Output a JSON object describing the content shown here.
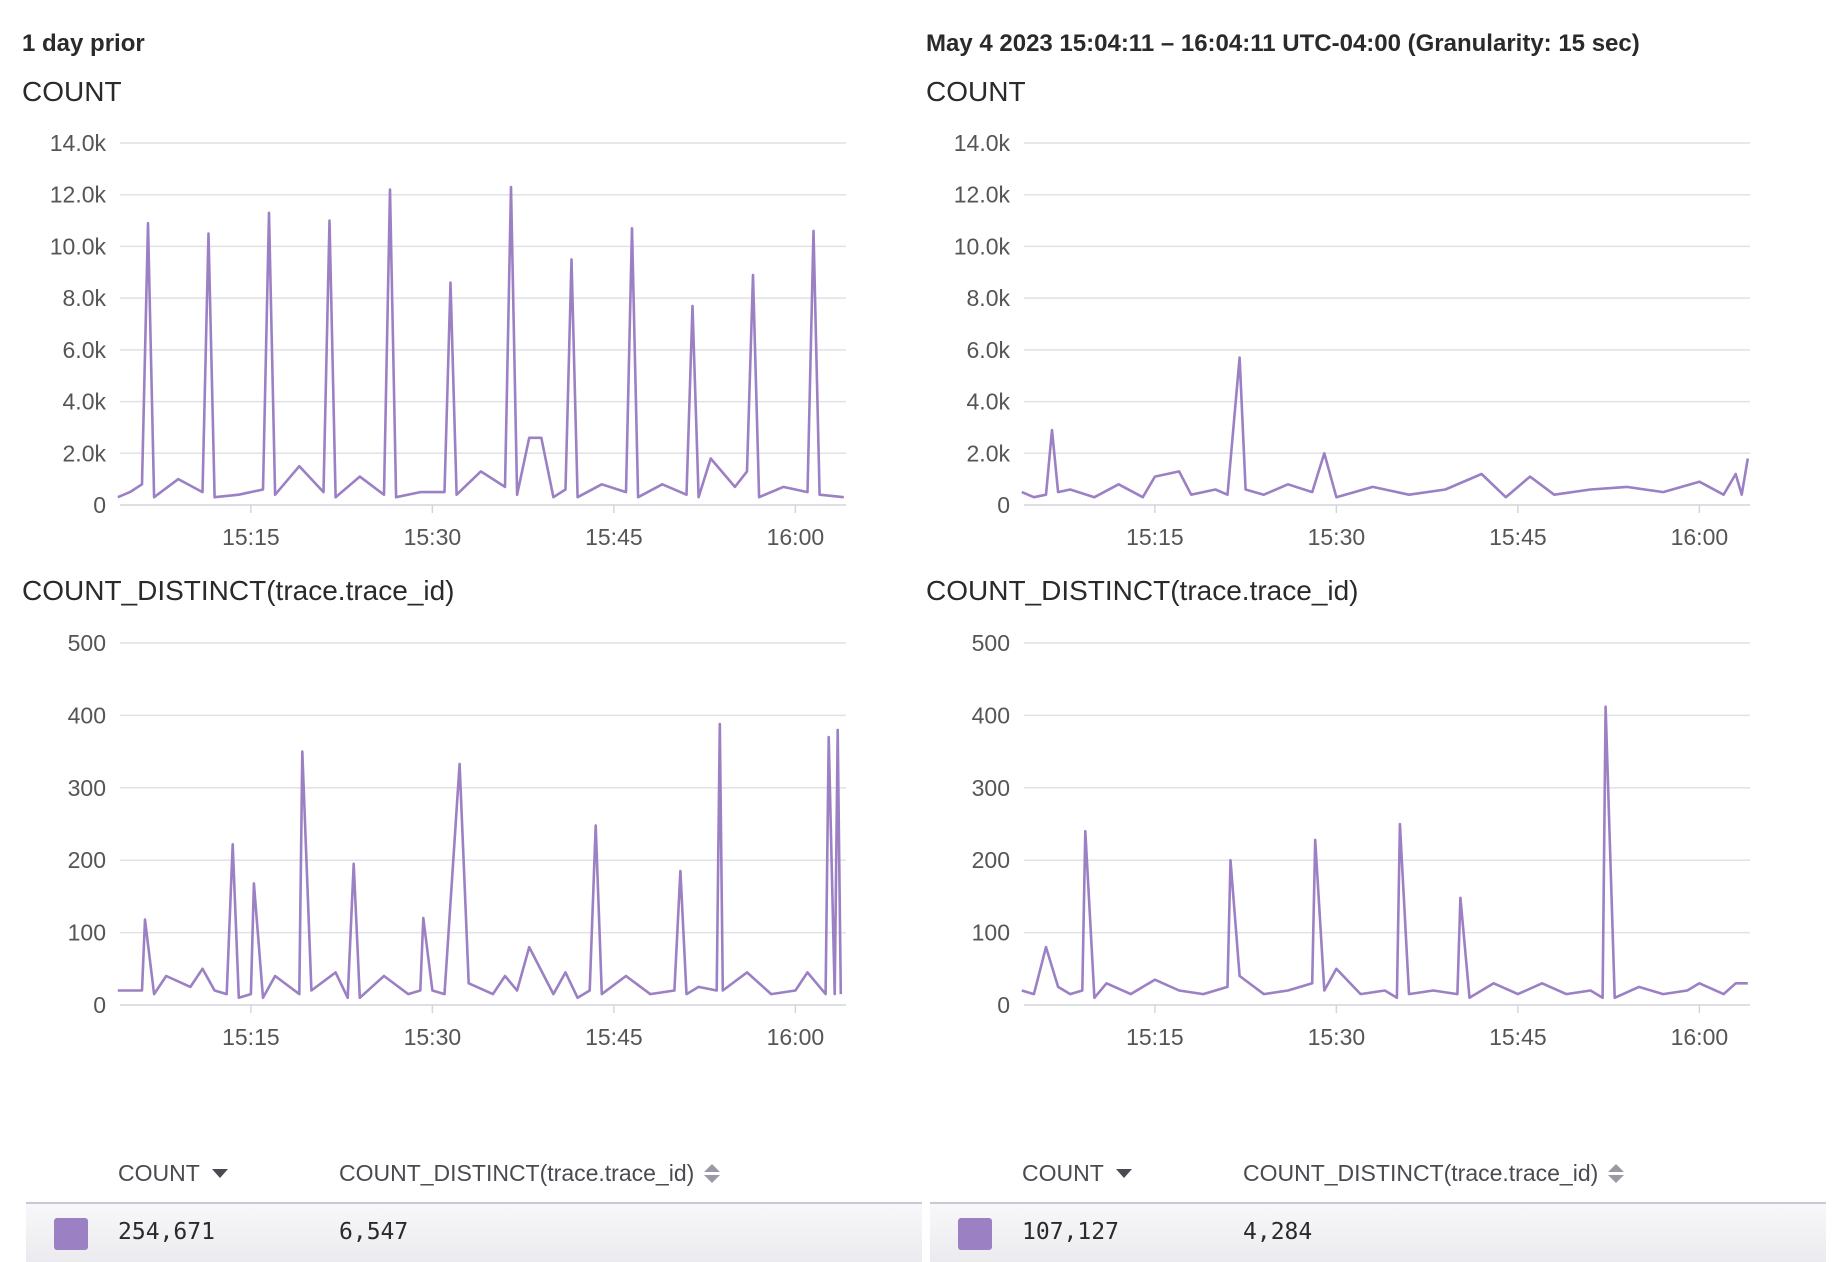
{
  "colors": {
    "series": "#9b80c4",
    "grid": "#e1e1e6",
    "text": "#2a2a2a"
  },
  "panels": [
    {
      "header": "1 day prior",
      "count_title": "COUNT",
      "distinct_title": "COUNT_DISTINCT(trace.trace_id)",
      "table": {
        "col_count": "COUNT",
        "col_distinct": "COUNT_DISTINCT(trace.trace_id)",
        "count_value": "254,671",
        "distinct_value": "6,547"
      }
    },
    {
      "header": "May 4 2023 15:04:11 – 16:04:11 UTC-04:00 (Granularity: 15 sec)",
      "count_title": "COUNT",
      "distinct_title": "COUNT_DISTINCT(trace.trace_id)",
      "table": {
        "col_count": "COUNT",
        "col_distinct": "COUNT_DISTINCT(trace.trace_id)",
        "count_value": "107,127",
        "distinct_value": "4,284"
      }
    }
  ],
  "chart_data": [
    {
      "type": "line",
      "panel": "1 day prior",
      "title": "COUNT",
      "x_range": [
        "15:04:11",
        "16:04:11"
      ],
      "x_ticks": [
        "15:15",
        "15:30",
        "15:45",
        "16:00"
      ],
      "y_ticks": [
        "0",
        "2.0k",
        "4.0k",
        "6.0k",
        "8.0k",
        "10.0k",
        "12.0k",
        "14.0k"
      ],
      "ylim": [
        0,
        14000
      ],
      "grid": true,
      "points": [
        [
          "15:04",
          300
        ],
        [
          "15:05",
          500
        ],
        [
          "15:06",
          800
        ],
        [
          "15:06:30",
          10900
        ],
        [
          "15:07",
          300
        ],
        [
          "15:09",
          1000
        ],
        [
          "15:11",
          500
        ],
        [
          "15:11:30",
          10500
        ],
        [
          "15:12",
          300
        ],
        [
          "15:14",
          400
        ],
        [
          "15:16",
          600
        ],
        [
          "15:16:30",
          11300
        ],
        [
          "15:17",
          400
        ],
        [
          "15:19",
          1500
        ],
        [
          "15:21",
          500
        ],
        [
          "15:21:30",
          11000
        ],
        [
          "15:22",
          300
        ],
        [
          "15:24",
          1100
        ],
        [
          "15:26",
          400
        ],
        [
          "15:26:30",
          12200
        ],
        [
          "15:27",
          300
        ],
        [
          "15:29",
          500
        ],
        [
          "15:31",
          500
        ],
        [
          "15:31:30",
          8600
        ],
        [
          "15:32",
          400
        ],
        [
          "15:34",
          1300
        ],
        [
          "15:36",
          700
        ],
        [
          "15:36:30",
          12300
        ],
        [
          "15:37",
          400
        ],
        [
          "15:38",
          2600
        ],
        [
          "15:39",
          2600
        ],
        [
          "15:40",
          300
        ],
        [
          "15:41",
          600
        ],
        [
          "15:41:30",
          9500
        ],
        [
          "15:42",
          300
        ],
        [
          "15:44",
          800
        ],
        [
          "15:46",
          500
        ],
        [
          "15:46:30",
          10700
        ],
        [
          "15:47",
          300
        ],
        [
          "15:49",
          800
        ],
        [
          "15:51",
          400
        ],
        [
          "15:51:30",
          7700
        ],
        [
          "15:52",
          300
        ],
        [
          "15:53",
          1800
        ],
        [
          "15:55",
          700
        ],
        [
          "15:56",
          1300
        ],
        [
          "15:56:30",
          8900
        ],
        [
          "15:57",
          300
        ],
        [
          "15:59",
          700
        ],
        [
          "16:01",
          500
        ],
        [
          "16:01:30",
          10600
        ],
        [
          "16:02",
          400
        ],
        [
          "16:04",
          300
        ]
      ]
    },
    {
      "type": "line",
      "panel": "1 day prior",
      "title": "COUNT_DISTINCT(trace.trace_id)",
      "x_range": [
        "15:04:11",
        "16:04:11"
      ],
      "x_ticks": [
        "15:15",
        "15:30",
        "15:45",
        "16:00"
      ],
      "y_ticks": [
        "0",
        "100",
        "200",
        "300",
        "400",
        "500"
      ],
      "ylim": [
        0,
        500
      ],
      "grid": true,
      "points": [
        [
          "15:04",
          20
        ],
        [
          "15:06",
          20
        ],
        [
          "15:06:15",
          118
        ],
        [
          "15:07",
          15
        ],
        [
          "15:08",
          40
        ],
        [
          "15:10",
          25
        ],
        [
          "15:11",
          50
        ],
        [
          "15:12",
          20
        ],
        [
          "15:13",
          15
        ],
        [
          "15:13:30",
          222
        ],
        [
          "15:14",
          10
        ],
        [
          "15:15",
          15
        ],
        [
          "15:15:15",
          168
        ],
        [
          "15:16",
          10
        ],
        [
          "15:17",
          40
        ],
        [
          "15:19",
          15
        ],
        [
          "15:19:15",
          350
        ],
        [
          "15:20",
          20
        ],
        [
          "15:22",
          45
        ],
        [
          "15:23",
          10
        ],
        [
          "15:23:30",
          195
        ],
        [
          "15:24",
          10
        ],
        [
          "15:26",
          40
        ],
        [
          "15:28",
          15
        ],
        [
          "15:29",
          20
        ],
        [
          "15:29:15",
          120
        ],
        [
          "15:30",
          20
        ],
        [
          "15:31",
          15
        ],
        [
          "15:32:15",
          333
        ],
        [
          "15:33",
          30
        ],
        [
          "15:35",
          15
        ],
        [
          "15:36",
          40
        ],
        [
          "15:37",
          20
        ],
        [
          "15:38",
          80
        ],
        [
          "15:40",
          15
        ],
        [
          "15:41",
          45
        ],
        [
          "15:42",
          10
        ],
        [
          "15:43",
          20
        ],
        [
          "15:43:30",
          248
        ],
        [
          "15:44",
          15
        ],
        [
          "15:46",
          40
        ],
        [
          "15:48",
          15
        ],
        [
          "15:50",
          20
        ],
        [
          "15:50:30",
          185
        ],
        [
          "15:51",
          15
        ],
        [
          "15:52",
          25
        ],
        [
          "15:53:30",
          20
        ],
        [
          "15:53:45",
          388
        ],
        [
          "15:54",
          20
        ],
        [
          "15:56",
          45
        ],
        [
          "15:58",
          15
        ],
        [
          "16:00",
          20
        ],
        [
          "16:01",
          45
        ],
        [
          "16:02:30",
          15
        ],
        [
          "16:02:45",
          370
        ],
        [
          "16:03:15",
          15
        ],
        [
          "16:03:30",
          380
        ],
        [
          "16:03:45",
          15
        ]
      ]
    },
    {
      "type": "line",
      "panel": "May 4 2023 15:04:11 – 16:04:11 UTC-04:00 (Granularity: 15 sec)",
      "title": "COUNT",
      "x_range": [
        "15:04:11",
        "16:04:11"
      ],
      "x_ticks": [
        "15:15",
        "15:30",
        "15:45",
        "16:00"
      ],
      "y_ticks": [
        "0",
        "2.0k",
        "4.0k",
        "6.0k",
        "8.0k",
        "10.0k",
        "12.0k",
        "14.0k"
      ],
      "ylim": [
        0,
        14000
      ],
      "grid": true,
      "points": [
        [
          "15:04",
          500
        ],
        [
          "15:05",
          300
        ],
        [
          "15:06",
          400
        ],
        [
          "15:06:30",
          2900
        ],
        [
          "15:07",
          500
        ],
        [
          "15:08",
          600
        ],
        [
          "15:10",
          300
        ],
        [
          "15:12",
          800
        ],
        [
          "15:14",
          300
        ],
        [
          "15:15",
          1100
        ],
        [
          "15:17",
          1300
        ],
        [
          "15:18",
          400
        ],
        [
          "15:20",
          600
        ],
        [
          "15:21",
          400
        ],
        [
          "15:22",
          5700
        ],
        [
          "15:22:30",
          600
        ],
        [
          "15:24",
          400
        ],
        [
          "15:26",
          800
        ],
        [
          "15:28",
          500
        ],
        [
          "15:29",
          2000
        ],
        [
          "15:30",
          300
        ],
        [
          "15:33",
          700
        ],
        [
          "15:36",
          400
        ],
        [
          "15:39",
          600
        ],
        [
          "15:42",
          1200
        ],
        [
          "15:44",
          300
        ],
        [
          "15:46",
          1100
        ],
        [
          "15:48",
          400
        ],
        [
          "15:51",
          600
        ],
        [
          "15:54",
          700
        ],
        [
          "15:57",
          500
        ],
        [
          "16:00",
          900
        ],
        [
          "16:02",
          400
        ],
        [
          "16:03",
          1200
        ],
        [
          "16:03:30",
          400
        ],
        [
          "16:04",
          1800
        ]
      ]
    },
    {
      "type": "line",
      "panel": "May 4 2023 15:04:11 – 16:04:11 UTC-04:00 (Granularity: 15 sec)",
      "title": "COUNT_DISTINCT(trace.trace_id)",
      "x_range": [
        "15:04:11",
        "16:04:11"
      ],
      "x_ticks": [
        "15:15",
        "15:30",
        "15:45",
        "16:00"
      ],
      "y_ticks": [
        "0",
        "100",
        "200",
        "300",
        "400",
        "500"
      ],
      "ylim": [
        0,
        500
      ],
      "grid": true,
      "points": [
        [
          "15:04",
          20
        ],
        [
          "15:05",
          15
        ],
        [
          "15:06",
          80
        ],
        [
          "15:07",
          25
        ],
        [
          "15:08",
          15
        ],
        [
          "15:09",
          20
        ],
        [
          "15:09:15",
          240
        ],
        [
          "15:10",
          10
        ],
        [
          "15:11",
          30
        ],
        [
          "15:13",
          15
        ],
        [
          "15:15",
          35
        ],
        [
          "15:17",
          20
        ],
        [
          "15:19",
          15
        ],
        [
          "15:21",
          25
        ],
        [
          "15:21:15",
          200
        ],
        [
          "15:22",
          40
        ],
        [
          "15:24",
          15
        ],
        [
          "15:26",
          20
        ],
        [
          "15:28",
          30
        ],
        [
          "15:28:15",
          228
        ],
        [
          "15:29",
          20
        ],
        [
          "15:30",
          50
        ],
        [
          "15:32",
          15
        ],
        [
          "15:34",
          20
        ],
        [
          "15:35",
          10
        ],
        [
          "15:35:15",
          250
        ],
        [
          "15:36",
          15
        ],
        [
          "15:38",
          20
        ],
        [
          "15:40",
          15
        ],
        [
          "15:40:15",
          148
        ],
        [
          "15:41",
          10
        ],
        [
          "15:43",
          30
        ],
        [
          "15:45",
          15
        ],
        [
          "15:47",
          30
        ],
        [
          "15:49",
          15
        ],
        [
          "15:51",
          20
        ],
        [
          "15:52",
          10
        ],
        [
          "15:52:15",
          412
        ],
        [
          "15:53",
          10
        ],
        [
          "15:55",
          25
        ],
        [
          "15:57",
          15
        ],
        [
          "15:59",
          20
        ],
        [
          "16:00",
          30
        ],
        [
          "16:02",
          15
        ],
        [
          "16:03",
          30
        ],
        [
          "16:04",
          30
        ]
      ]
    }
  ],
  "table_swatch_color": "#9b80c4"
}
